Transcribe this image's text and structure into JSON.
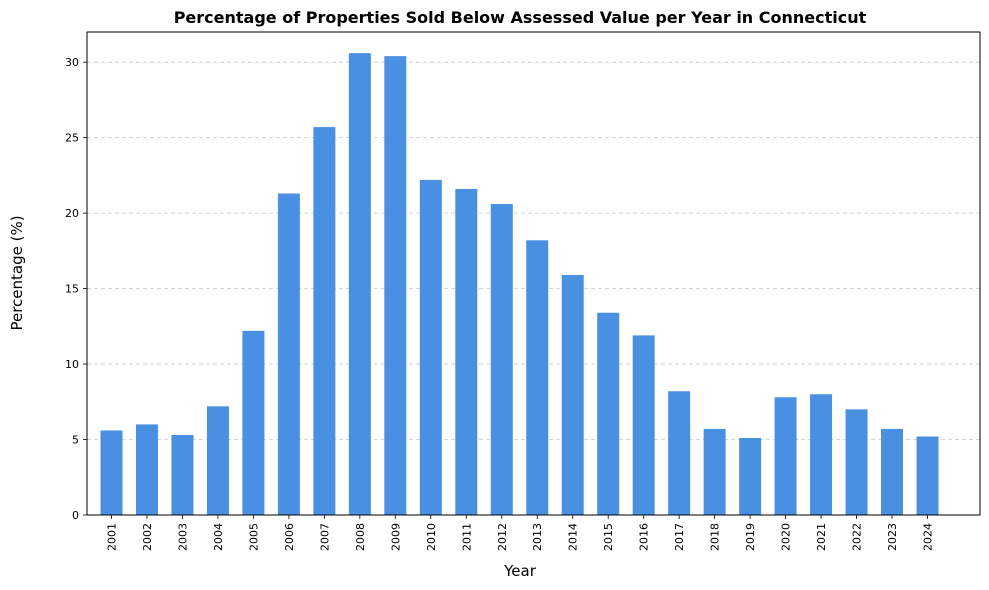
{
  "chart_data": {
    "type": "bar",
    "title": "Percentage of Properties Sold Below Assessed Value per Year in Connecticut",
    "xlabel": "Year",
    "ylabel": "Percentage (%)",
    "categories": [
      "2001",
      "2002",
      "2003",
      "2004",
      "2005",
      "2006",
      "2007",
      "2008",
      "2009",
      "2010",
      "2011",
      "2012",
      "2013",
      "2014",
      "2015",
      "2016",
      "2017",
      "2018",
      "2019",
      "2020",
      "2021",
      "2022",
      "2023",
      "2024"
    ],
    "values": [
      5.6,
      6.0,
      5.3,
      7.2,
      12.2,
      21.3,
      25.7,
      30.6,
      30.4,
      22.2,
      21.6,
      20.6,
      18.2,
      15.9,
      13.4,
      11.9,
      8.2,
      5.7,
      5.1,
      7.8,
      8.0,
      7.0,
      5.7,
      5.2
    ],
    "yticks": [
      0,
      5,
      10,
      15,
      20,
      25,
      30
    ],
    "ylim": [
      0,
      32
    ],
    "bar_color": "#4a90e2",
    "grid": "y-axis dashed",
    "legend": "none"
  }
}
